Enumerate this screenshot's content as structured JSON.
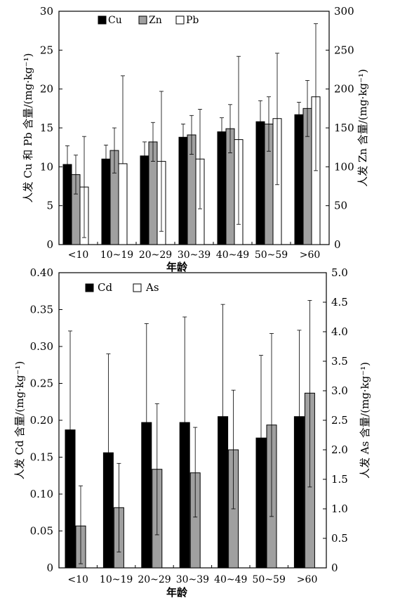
{
  "chart_data": [
    {
      "type": "bar",
      "categories": [
        "<10",
        "10~19",
        "20~29",
        "30~39",
        "40~49",
        "50~59",
        ">60"
      ],
      "xlabel": "年龄",
      "ylabel": "人发 Cu 和 Pb 含量/(mg·kg⁻¹)",
      "ylabel_right": "人发 Zn 含量/(mg·kg⁻¹)",
      "ylim": [
        0,
        30
      ],
      "yticks": [
        "0",
        "5",
        "10",
        "15",
        "20",
        "25",
        "30"
      ],
      "ylim_right": [
        0,
        300
      ],
      "yticks_right": [
        "0",
        "50",
        "100",
        "150",
        "200",
        "250",
        "300"
      ],
      "legend": "top-left",
      "series": [
        {
          "name": "Cu",
          "axis": "left",
          "color": "#000000",
          "values": [
            10.3,
            11.0,
            11.4,
            13.8,
            14.5,
            15.8,
            16.7
          ],
          "err_high": [
            12.7,
            12.8,
            13.2,
            15.5,
            16.3,
            18.5,
            18.3
          ],
          "err_low": [
            8.8,
            9.2,
            9.6,
            12.2,
            12.7,
            13.0,
            15.1
          ]
        },
        {
          "name": "Zn",
          "axis": "right",
          "color": "#a0a0a0",
          "values": [
            90,
            121,
            132,
            141,
            149,
            155,
            175
          ],
          "err_high": [
            115,
            150,
            157,
            166,
            180,
            190,
            211
          ],
          "err_low": [
            65,
            92,
            107,
            116,
            118,
            120,
            139
          ]
        },
        {
          "name": "Pb",
          "axis": "left",
          "color": "#ffffff",
          "values": [
            7.4,
            10.4,
            10.7,
            11.0,
            13.5,
            16.2,
            19.0
          ],
          "err_high": [
            13.9,
            21.7,
            19.7,
            17.4,
            24.2,
            24.6,
            28.4
          ],
          "err_low": [
            0.9,
            null,
            1.7,
            4.6,
            2.6,
            7.7,
            9.5
          ]
        }
      ]
    },
    {
      "type": "bar",
      "categories": [
        "<10",
        "10~19",
        "20~29",
        "30~39",
        "40~49",
        "50~59",
        ">60"
      ],
      "xlabel": "年龄",
      "ylabel": "人发 Cd 含量/(mg·kg⁻¹)",
      "ylabel_right": "人发 As 含量/(mg·kg⁻¹)",
      "ylim": [
        0,
        0.4
      ],
      "yticks": [
        "0",
        "0.05",
        "0.10",
        "0.15",
        "0.20",
        "0.25",
        "0.30",
        "0.35",
        "0.40"
      ],
      "ylim_right": [
        0,
        5
      ],
      "yticks_right": [
        "0",
        "0.5",
        "1.0",
        "1.5",
        "2.0",
        "2.5",
        "3.0",
        "3.5",
        "4.0",
        "4.5",
        "5.0"
      ],
      "legend": "top-left",
      "series": [
        {
          "name": "Cd",
          "axis": "left",
          "color": "#000000",
          "values": [
            0.187,
            0.156,
            0.197,
            0.197,
            0.205,
            0.176,
            0.205
          ],
          "err_high": [
            0.321,
            0.29,
            0.331,
            0.34,
            0.357,
            0.288,
            0.322
          ],
          "err_low": [
            0.051,
            0.019,
            0.061,
            0.052,
            0.052,
            0.062,
            0.087
          ]
        },
        {
          "name": "As",
          "axis": "right",
          "color": "#a0a0a0",
          "values": [
            0.71,
            1.02,
            1.67,
            1.61,
            2.0,
            2.42,
            2.96
          ],
          "err_high": [
            1.39,
            1.77,
            2.78,
            2.38,
            3.01,
            3.97,
            4.53
          ],
          "err_low": [
            0.07,
            0.27,
            0.56,
            0.86,
            1.0,
            0.87,
            1.37
          ]
        }
      ]
    }
  ]
}
